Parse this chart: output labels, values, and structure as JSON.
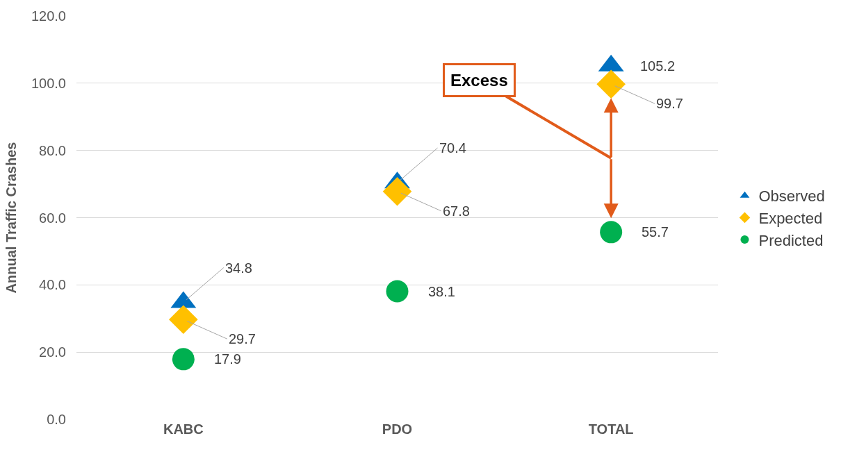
{
  "chart_data": {
    "type": "scatter",
    "ylabel": "Annual Traffic Crashes",
    "categories": [
      "KABC",
      "PDO",
      "TOTAL"
    ],
    "series": [
      {
        "name": "Observed",
        "color": "#0070c0",
        "marker": "triangle",
        "values": [
          34.8,
          70.4,
          105.2
        ]
      },
      {
        "name": "Expected",
        "color": "#ffc000",
        "marker": "diamond",
        "values": [
          29.7,
          67.8,
          99.7
        ]
      },
      {
        "name": "Predicted",
        "color": "#00b050",
        "marker": "circle",
        "values": [
          17.9,
          38.1,
          55.7
        ]
      }
    ],
    "ylim": [
      0,
      120
    ],
    "yticks": [
      {
        "value": 0,
        "label": "0.0"
      },
      {
        "value": 20,
        "label": "20.0"
      },
      {
        "value": 40,
        "label": "40.0"
      },
      {
        "value": 60,
        "label": "60.0"
      },
      {
        "value": 80,
        "label": "80.0"
      },
      {
        "value": 100,
        "label": "100.0"
      },
      {
        "value": 120,
        "label": "120.0"
      }
    ],
    "grid": "y",
    "legend": "right",
    "data_labels": true,
    "annotations": [
      "Excess"
    ]
  }
}
